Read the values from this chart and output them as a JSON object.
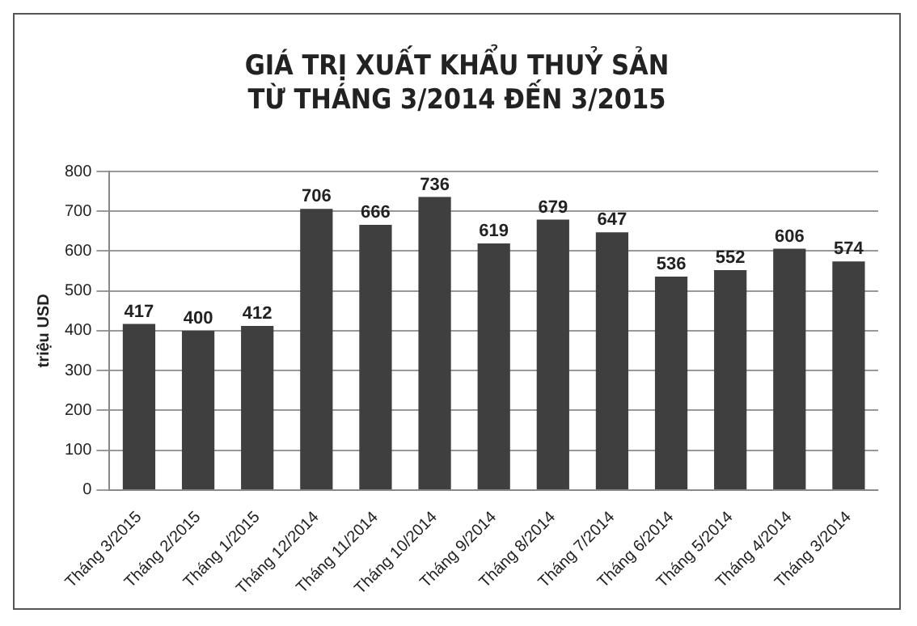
{
  "chart_data": {
    "type": "bar",
    "title": "GIÁ TRỊ XUẤT KHẨU THUỶ SẢN\nTỪ THÁNG 3/2014 ĐẾN 3/2015",
    "ylabel": "triệu USD",
    "categories": [
      "Tháng 3/2015",
      "Tháng 2/2015",
      "Tháng 1/2015",
      "Tháng 12/2014",
      "Tháng 11/2014",
      "Tháng 10/2014",
      "Tháng 9/2014",
      "Tháng 8/2014",
      "Tháng 7/2014",
      "Tháng 6/2014",
      "Tháng 5/2014",
      "Tháng 4/2014",
      "Tháng 3/2014"
    ],
    "values": [
      417,
      400,
      412,
      706,
      666,
      736,
      619,
      679,
      647,
      536,
      552,
      606,
      574
    ],
    "color": "#3f3f3f",
    "ylim": [
      0,
      800
    ],
    "yticks": [
      0,
      100,
      200,
      300,
      400,
      500,
      600,
      700,
      800
    ],
    "grid": "y",
    "data_labels": true
  }
}
